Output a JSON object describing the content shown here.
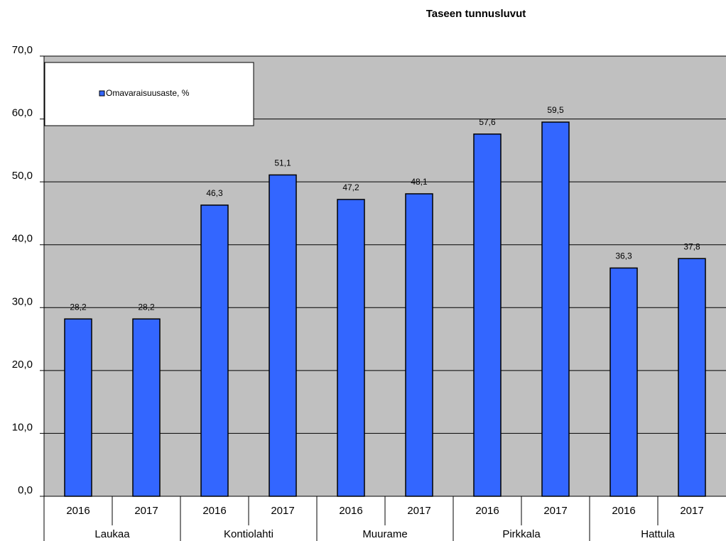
{
  "chart_data": {
    "type": "bar",
    "title": "Taseen tunnusluvut",
    "categories": [
      "2016",
      "2017",
      "2016",
      "2017",
      "2016",
      "2017",
      "2016",
      "2017",
      "2016",
      "2017"
    ],
    "groups": [
      "Laukaa",
      "Kontiolahti",
      "Muurame",
      "Pirkkala",
      "Hattula"
    ],
    "series": [
      {
        "name": "Omavaraisuusaste, %",
        "color": "#3366ff",
        "values": [
          28.2,
          28.2,
          46.3,
          51.1,
          47.2,
          48.1,
          57.6,
          59.5,
          36.3,
          37.8
        ],
        "value_labels": [
          "28,2",
          "28,2",
          "46,3",
          "51,1",
          "47,2",
          "48,1",
          "57,6",
          "59,5",
          "36,3",
          "37,8"
        ]
      }
    ],
    "ylim": [
      0,
      70
    ],
    "yticks": [
      {
        "value": 0,
        "label": "0,0"
      },
      {
        "value": 10,
        "label": "10,0"
      },
      {
        "value": 20,
        "label": "20,0"
      },
      {
        "value": 30,
        "label": "30,0"
      },
      {
        "value": 40,
        "label": "40,0"
      },
      {
        "value": 50,
        "label": "50,0"
      },
      {
        "value": 60,
        "label": "60,0"
      },
      {
        "value": 70,
        "label": "70,0"
      }
    ],
    "grid": true,
    "legend": "upper left"
  }
}
